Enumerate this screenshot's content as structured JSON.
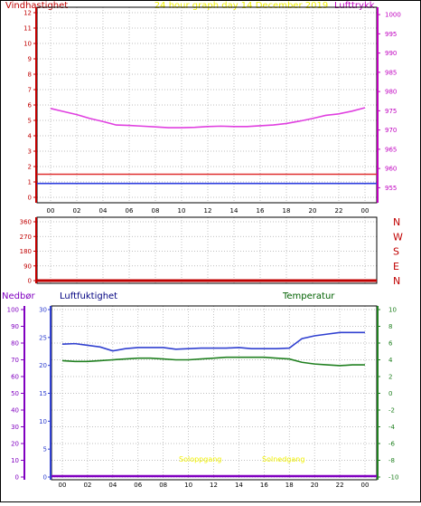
{
  "header": {
    "title": "24 hour graph day   14 December 2019",
    "left_label": "Vindhastighet",
    "right_label": "Lufttrykk"
  },
  "colors": {
    "pressure": "#e040e0",
    "wind_red": "#e03030",
    "wind_blue": "#3040e0",
    "humidity": "#3040d0",
    "temperature": "#208020",
    "rain": "#8000c0",
    "direction": "#c00000",
    "title": "#f0f000",
    "left_axis": "#c00000",
    "right_axis": "#c000c0",
    "grid": "#aaaaaa",
    "frame": "#000000"
  },
  "lower": {
    "label_rain": "Nedbør",
    "label_humidity": "Luftfuktighet",
    "label_temperature": "Temperatur",
    "sun_labels": [
      "Soloppgang",
      "Solnedgang"
    ]
  },
  "chart_data": [
    {
      "type": "line",
      "x_ticks": [
        "00",
        "02",
        "04",
        "06",
        "08",
        "10",
        "12",
        "14",
        "16",
        "18",
        "20",
        "22",
        "00"
      ],
      "y_left": {
        "ticks": [
          "0",
          "1",
          "2",
          "3",
          "4",
          "5",
          "6",
          "7",
          "8",
          "9",
          "10",
          "11",
          "12"
        ],
        "range": [
          0,
          12.5
        ]
      },
      "y_right": {
        "ticks": [
          "955",
          "960",
          "965",
          "970",
          "975",
          "980",
          "985",
          "990",
          "995",
          "1000"
        ],
        "range": [
          952.5,
          1002.5
        ]
      },
      "grid": true,
      "series": [
        {
          "x": [
            0,
            1,
            2,
            3,
            4,
            5,
            6,
            7,
            8,
            9,
            10,
            11,
            12,
            13,
            14,
            15,
            16,
            17,
            18,
            19,
            20,
            21,
            22,
            23,
            24
          ],
          "values": [
            975.6,
            974.8,
            974.0,
            973.0,
            972.2,
            971.3,
            971.2,
            971.0,
            970.8,
            970.6,
            970.6,
            970.7,
            970.9,
            971.0,
            970.9,
            970.9,
            971.1,
            971.3,
            971.7,
            972.3,
            973.0,
            973.8,
            974.2,
            974.9,
            975.8
          ]
        },
        {
          "x": [
            0,
            24
          ],
          "values": [
            1.5,
            1.5
          ]
        },
        {
          "x": [
            0,
            24
          ],
          "values": [
            0.9,
            0.9
          ]
        }
      ]
    },
    {
      "type": "line",
      "y_left": {
        "ticks": [
          "0",
          "90",
          "180",
          "270",
          "360"
        ],
        "range": [
          0,
          360
        ]
      },
      "y_right": {
        "ticks": [
          "N",
          "E",
          "S",
          "W",
          "N"
        ]
      },
      "grid": true,
      "series": [
        {
          "x": [
            0,
            24
          ],
          "values": [
            0,
            0
          ]
        }
      ]
    },
    {
      "type": "line",
      "x_ticks": [
        "00",
        "02",
        "04",
        "06",
        "08",
        "10",
        "12",
        "14",
        "16",
        "18",
        "20",
        "22",
        "00"
      ],
      "y_rain": {
        "ticks": [
          "0",
          "10",
          "20",
          "30",
          "40",
          "50",
          "60",
          "70",
          "80",
          "90",
          "100"
        ],
        "range": [
          0,
          100
        ]
      },
      "y_humidity": {
        "ticks": [
          "0",
          "5",
          "10",
          "15",
          "20",
          "25",
          "30"
        ],
        "range": [
          0,
          30
        ]
      },
      "y_temperature": {
        "ticks": [
          "-10",
          "-8",
          "-6",
          "-4",
          "-2",
          "0",
          "2",
          "4",
          "6",
          "8",
          "10"
        ],
        "range": [
          -10,
          10
        ]
      },
      "grid": true,
      "series": [
        {
          "x": [
            0,
            1,
            2,
            3,
            4,
            5,
            6,
            7,
            8,
            9,
            10,
            11,
            12,
            13,
            14,
            15,
            16,
            17,
            18,
            19,
            20,
            21,
            22,
            23,
            24
          ],
          "values": [
            23.8,
            23.9,
            23.6,
            23.3,
            22.6,
            23.0,
            23.2,
            23.2,
            23.2,
            22.9,
            23.0,
            23.1,
            23.1,
            23.1,
            23.2,
            23.0,
            23.0,
            23.0,
            23.1,
            24.8,
            25.3,
            25.6,
            25.9,
            25.9,
            25.9
          ]
        },
        {
          "x": [
            0,
            1,
            2,
            3,
            4,
            5,
            6,
            7,
            8,
            9,
            10,
            11,
            12,
            13,
            14,
            15,
            16,
            17,
            18,
            19,
            20,
            21,
            22,
            23,
            24
          ],
          "values": [
            3.9,
            3.8,
            3.8,
            3.9,
            4.0,
            4.1,
            4.2,
            4.2,
            4.1,
            4.0,
            4.0,
            4.1,
            4.2,
            4.3,
            4.3,
            4.3,
            4.3,
            4.2,
            4.1,
            3.7,
            3.5,
            3.4,
            3.3,
            3.4,
            3.4
          ]
        },
        {
          "x": [
            0,
            24
          ],
          "values": [
            0,
            0
          ]
        }
      ]
    }
  ]
}
